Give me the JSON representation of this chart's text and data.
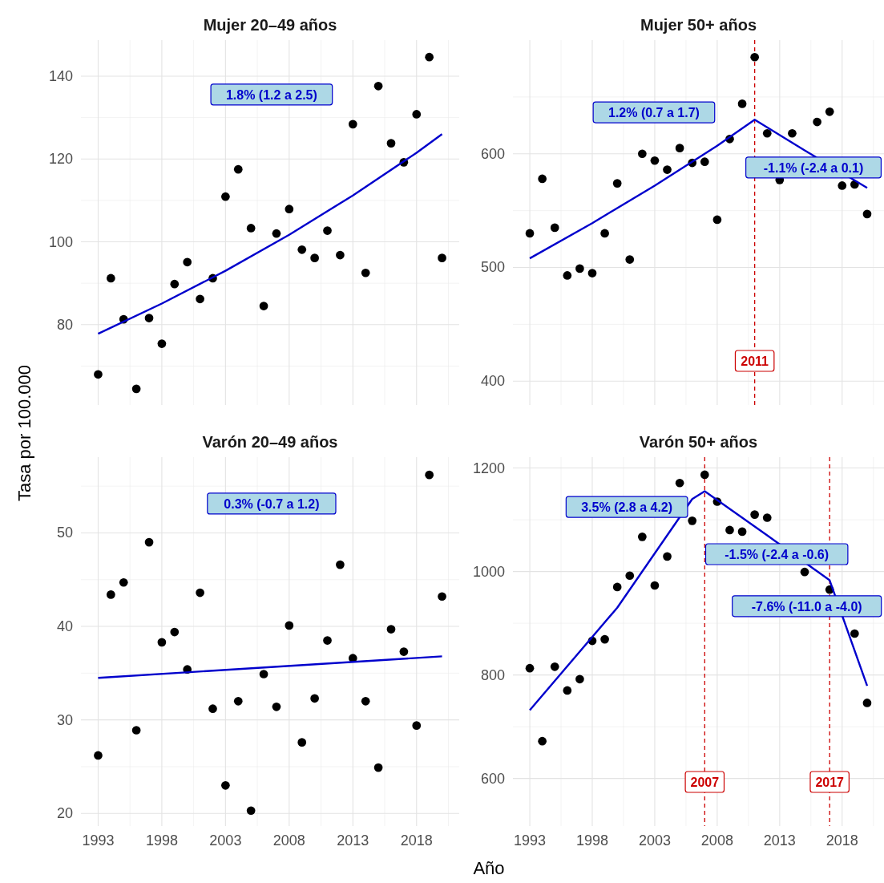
{
  "chart_data": [
    {
      "type": "scatter",
      "title": "Mujer 20–49 años",
      "ylabel": "Tasa por 100.000",
      "xlim": [
        1991.65,
        2021.35
      ],
      "xticks": [
        1993,
        1998,
        2003,
        2008,
        2013,
        2018
      ],
      "ylim": [
        60.6,
        148.7
      ],
      "yticks": [
        80,
        100,
        120,
        140
      ],
      "tick_labels": "y",
      "grid": true,
      "series": [
        {
          "marker": "circle",
          "color": "#000000",
          "x": [
            1993,
            1994,
            1995,
            1996,
            1997,
            1998,
            1999,
            2000,
            2001,
            2002,
            2003,
            2004,
            2005,
            2006,
            2007,
            2008,
            2009,
            2010,
            2011,
            2012,
            2013,
            2014,
            2015,
            2016,
            2017,
            2018,
            2019,
            2020
          ],
          "values": [
            68.0,
            91.2,
            81.3,
            64.5,
            81.6,
            75.4,
            89.8,
            95.1,
            86.2,
            91.2,
            110.9,
            117.5,
            103.3,
            84.5,
            102.0,
            107.9,
            98.1,
            96.1,
            102.7,
            96.8,
            128.4,
            92.5,
            137.6,
            123.8,
            119.2,
            130.8,
            144.6,
            96.1
          ]
        },
        {
          "type": "line",
          "color": "#0000cc",
          "x": [
            1993,
            1998,
            2003,
            2008,
            2013,
            2018,
            2020
          ],
          "values": [
            77.8,
            85.1,
            93.0,
            101.7,
            111.2,
            121.5,
            126.0
          ]
        }
      ],
      "annotations": [
        "1.8% (1.2 a 2.5)"
      ]
    },
    {
      "type": "scatter",
      "title": "Mujer 50+ años",
      "xlim": [
        1991.65,
        2021.35
      ],
      "xticks": [
        1993,
        1998,
        2003,
        2008,
        2013,
        2018
      ],
      "ylim": [
        379,
        700
      ],
      "yticks": [
        400,
        500,
        600
      ],
      "tick_labels": "y",
      "grid": true,
      "series": [
        {
          "marker": "circle",
          "color": "#000000",
          "x": [
            1993,
            1994,
            1995,
            1996,
            1997,
            1998,
            1999,
            2000,
            2001,
            2002,
            2003,
            2004,
            2005,
            2006,
            2007,
            2008,
            2009,
            2010,
            2011,
            2012,
            2013,
            2014,
            2016,
            2017,
            2018,
            2019,
            2020
          ],
          "values": [
            530,
            578,
            535,
            493,
            499,
            495,
            530,
            574,
            507,
            600,
            594,
            586,
            605,
            592,
            593,
            542,
            613,
            644,
            685,
            618,
            577,
            618,
            628,
            637,
            572,
            573,
            547
          ]
        },
        {
          "type": "line",
          "color": "#0000cc",
          "x": [
            1993,
            1998,
            2003,
            2008,
            2011,
            2015,
            2020
          ],
          "values": [
            508,
            539,
            572,
            607,
            630,
            603,
            570
          ]
        }
      ],
      "ref_lines": [
        {
          "axis": "x",
          "value": 2011,
          "label": "2011",
          "color": "#cc0000",
          "line_style": "dashed"
        }
      ],
      "annotations": [
        "1.2% (0.7 a 1.7)",
        "-1.1% (-2.4 a 0.1)"
      ]
    },
    {
      "type": "scatter",
      "title": "Varón 20–49 años",
      "xlabel": "Año",
      "xlim": [
        1991.65,
        2021.35
      ],
      "xticks": [
        1993,
        1998,
        2003,
        2008,
        2013,
        2018
      ],
      "ylim": [
        18.65,
        58.1
      ],
      "yticks": [
        20,
        30,
        40,
        50
      ],
      "grid": true,
      "series": [
        {
          "marker": "circle",
          "color": "#000000",
          "x": [
            1993,
            1994,
            1995,
            1996,
            1997,
            1998,
            1999,
            2000,
            2001,
            2002,
            2003,
            2004,
            2005,
            2006,
            2007,
            2008,
            2009,
            2010,
            2011,
            2012,
            2013,
            2014,
            2015,
            2016,
            2017,
            2018,
            2019,
            2020
          ],
          "values": [
            26.2,
            43.4,
            44.7,
            28.9,
            49.0,
            38.3,
            39.4,
            35.4,
            43.6,
            31.2,
            23.0,
            32.0,
            20.3,
            34.9,
            31.4,
            40.1,
            27.6,
            32.3,
            38.5,
            46.6,
            36.6,
            32.0,
            24.9,
            39.7,
            37.3,
            29.4,
            56.2,
            43.2
          ]
        },
        {
          "type": "line",
          "color": "#0000cc",
          "x": [
            1993,
            2020
          ],
          "values": [
            34.5,
            36.8
          ]
        }
      ],
      "annotations": [
        "0.3% (-0.7 a 1.2)"
      ]
    },
    {
      "type": "scatter",
      "title": "Varón 50+ años",
      "xlim": [
        1991.65,
        2021.35
      ],
      "xticks": [
        1993,
        1998,
        2003,
        2008,
        2013,
        2018
      ],
      "ylim": [
        508,
        1221
      ],
      "yticks": [
        600,
        800,
        1000,
        1200
      ],
      "grid": true,
      "series": [
        {
          "marker": "circle",
          "color": "#000000",
          "x": [
            1993,
            1994,
            1995,
            1996,
            1997,
            1998,
            1999,
            2000,
            2001,
            2002,
            2003,
            2004,
            2005,
            2006,
            2007,
            2008,
            2009,
            2010,
            2011,
            2012,
            2015,
            2017,
            2019,
            2020
          ],
          "values": [
            813,
            672,
            816,
            770,
            792,
            866,
            869,
            970,
            992,
            1067,
            973,
            1029,
            1171,
            1098,
            1187,
            1135,
            1080,
            1077,
            1110,
            1104,
            999,
            965,
            880,
            746
          ]
        },
        {
          "type": "line",
          "color": "#0000cc",
          "x": [
            1993,
            2000,
            2006,
            2007,
            2012,
            2017,
            2020
          ],
          "values": [
            732,
            930,
            1140,
            1155,
            1070,
            983,
            779
          ]
        }
      ],
      "ref_lines": [
        {
          "axis": "x",
          "value": 2007,
          "label": "2007",
          "color": "#cc0000",
          "line_style": "dashed"
        },
        {
          "axis": "x",
          "value": 2017,
          "label": "2017",
          "color": "#cc0000",
          "line_style": "dashed"
        }
      ],
      "annotations": [
        "3.5% (2.8 a 4.2)",
        "-1.5% (-2.4 a -0.6)",
        "-7.6% (-11.0 a -4.0)"
      ]
    }
  ]
}
